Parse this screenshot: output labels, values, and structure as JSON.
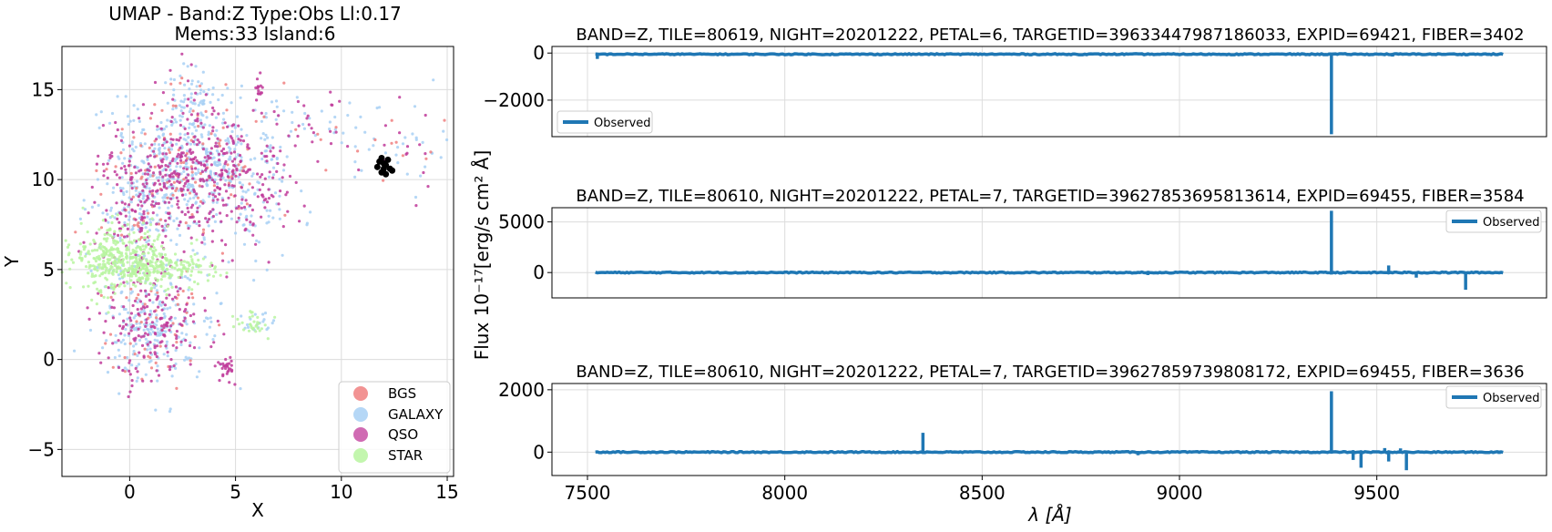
{
  "chart_data": [
    {
      "type": "scatter",
      "title_line1": "UMAP  -  Band:Z Type:Obs Ll:0.17",
      "title_line2": "Mems:33 Island:6",
      "xlabel": "X",
      "ylabel": "Y",
      "xlim": [
        -3.2,
        15.3
      ],
      "ylim": [
        -6.5,
        17.4
      ],
      "xticks": [
        "0",
        "5",
        "10",
        "15"
      ],
      "yticks": [
        "−5",
        "0",
        "5",
        "10",
        "15"
      ],
      "grid": true,
      "legend_position": "lower right",
      "series": [
        {
          "name": "BGS",
          "color": "#f08080"
        },
        {
          "name": "GALAXY",
          "color": "#a8d0f5"
        },
        {
          "name": "QSO",
          "color": "#c0399a"
        },
        {
          "name": "STAR",
          "color": "#b8f5a0"
        }
      ],
      "highlight": {
        "color": "#000000",
        "x": [
          11.8,
          12.1,
          12.3,
          11.9,
          12.2,
          12.0,
          11.7,
          12.4,
          12.1,
          11.9,
          12.0
        ],
        "y": [
          11.0,
          10.8,
          10.6,
          10.4,
          11.1,
          10.9,
          10.7,
          10.5,
          10.3,
          11.2,
          10.6
        ]
      },
      "clusters": [
        {
          "cx": 2.2,
          "cy": 10.8,
          "sx": 1.8,
          "sy": 1.5,
          "n": 700,
          "mix": [
            0.1,
            0.5,
            0.4,
            0.0
          ]
        },
        {
          "cx": 5.0,
          "cy": 9.5,
          "sx": 1.3,
          "sy": 1.8,
          "n": 300,
          "mix": [
            0.05,
            0.45,
            0.5,
            0.0
          ]
        },
        {
          "cx": 0.6,
          "cy": 8.0,
          "sx": 1.3,
          "sy": 1.0,
          "n": 180,
          "mix": [
            0.1,
            0.55,
            0.35,
            0.0
          ]
        },
        {
          "cx": -0.6,
          "cy": 5.6,
          "sx": 1.2,
          "sy": 0.9,
          "n": 400,
          "mix": [
            0.0,
            0.05,
            0.05,
            0.9
          ]
        },
        {
          "cx": 1.6,
          "cy": 5.0,
          "sx": 1.3,
          "sy": 0.5,
          "n": 200,
          "mix": [
            0.0,
            0.08,
            0.07,
            0.85
          ]
        },
        {
          "cx": 1.1,
          "cy": 1.8,
          "sx": 1.3,
          "sy": 1.5,
          "n": 450,
          "mix": [
            0.1,
            0.5,
            0.4,
            0.0
          ]
        },
        {
          "cx": 3.0,
          "cy": 14.5,
          "sx": 0.8,
          "sy": 1.0,
          "n": 90,
          "mix": [
            0.05,
            0.75,
            0.2,
            0.0
          ]
        },
        {
          "cx": 8.0,
          "cy": 13.0,
          "sx": 1.6,
          "sy": 1.2,
          "n": 70,
          "mix": [
            0.1,
            0.5,
            0.4,
            0.0
          ]
        },
        {
          "cx": 12.5,
          "cy": 12.0,
          "sx": 1.4,
          "sy": 1.3,
          "n": 60,
          "mix": [
            0.1,
            0.5,
            0.4,
            0.0
          ]
        },
        {
          "cx": 5.8,
          "cy": 2.0,
          "sx": 0.5,
          "sy": 0.3,
          "n": 50,
          "mix": [
            0.0,
            0.5,
            0.0,
            0.5
          ]
        },
        {
          "cx": 4.5,
          "cy": -0.6,
          "sx": 0.2,
          "sy": 0.4,
          "n": 30,
          "mix": [
            0.0,
            0.1,
            0.9,
            0.0
          ]
        },
        {
          "cx": 6.1,
          "cy": 15.0,
          "sx": 0.15,
          "sy": 0.4,
          "n": 15,
          "mix": [
            0.0,
            0.0,
            1.0,
            0.0
          ]
        }
      ]
    },
    {
      "type": "line",
      "title": "BAND=Z, TILE=80619, NIGHT=20201222, PETAL=6, TARGETID=39633447987186033, EXPID=69421, FIBER=3402",
      "legend": "Observed",
      "legend_position": "lower left",
      "color": "#1f77b4",
      "xlim": [
        7410,
        9930
      ],
      "ylim": [
        -3550,
        280
      ],
      "yticks": [
        {
          "v": 0,
          "label": "0"
        },
        {
          "v": -2000,
          "label": "−2000"
        }
      ],
      "x_range": [
        7520,
        9820
      ],
      "baseline": -50,
      "spikes": [
        {
          "x": 7525,
          "y": -250
        },
        {
          "x": 9385,
          "y": -3450
        },
        {
          "x": 9380,
          "y": 20
        },
        {
          "x": 9540,
          "y": -150
        },
        {
          "x": 9780,
          "y": -120
        }
      ]
    },
    {
      "type": "line",
      "title": "BAND=Z, TILE=80610, NIGHT=20201222, PETAL=7, TARGETID=39627853695813614, EXPID=69455, FIBER=3584",
      "legend": "Observed",
      "legend_position": "upper right",
      "color": "#1f77b4",
      "xlim": [
        7410,
        9930
      ],
      "ylim": [
        -2500,
        6400
      ],
      "yticks": [
        {
          "v": 0,
          "label": "0"
        },
        {
          "v": 5000,
          "label": "5000"
        }
      ],
      "x_range": [
        7520,
        9820
      ],
      "baseline": 0,
      "spikes": [
        {
          "x": 9385,
          "y": 6100
        },
        {
          "x": 9385,
          "y": -200
        },
        {
          "x": 9530,
          "y": 700
        },
        {
          "x": 9600,
          "y": -500
        },
        {
          "x": 9725,
          "y": -1700
        },
        {
          "x": 8920,
          "y": -250
        }
      ]
    },
    {
      "type": "line",
      "title": "BAND=Z, TILE=80610, NIGHT=20201222, PETAL=7, TARGETID=39627859739808172, EXPID=69455, FIBER=3636",
      "legend": "Observed",
      "legend_position": "upper right",
      "color": "#1f77b4",
      "xlim": [
        7410,
        9930
      ],
      "ylim": [
        -750,
        2200
      ],
      "yticks": [
        {
          "v": 0,
          "label": "0"
        },
        {
          "v": 2000,
          "label": "2000"
        }
      ],
      "xticks": [
        {
          "v": 7500,
          "label": "7500"
        },
        {
          "v": 8000,
          "label": "8000"
        },
        {
          "v": 8500,
          "label": "8500"
        },
        {
          "v": 9000,
          "label": "9000"
        },
        {
          "v": 9500,
          "label": "9500"
        }
      ],
      "x_range": [
        7520,
        9820
      ],
      "baseline": 0,
      "spikes": [
        {
          "x": 8350,
          "y": 620
        },
        {
          "x": 8895,
          "y": -100
        },
        {
          "x": 9385,
          "y": 1950
        },
        {
          "x": 9440,
          "y": -250
        },
        {
          "x": 9460,
          "y": -500
        },
        {
          "x": 9520,
          "y": 130
        },
        {
          "x": 9530,
          "y": -300
        },
        {
          "x": 9560,
          "y": 120
        },
        {
          "x": 9575,
          "y": -580
        },
        {
          "x": 9810,
          "y": -60
        }
      ]
    }
  ],
  "shared_xlabel": "λ [Å]",
  "shared_ylabel": "Flux 10⁻¹⁷[erg/s cm² Å]"
}
